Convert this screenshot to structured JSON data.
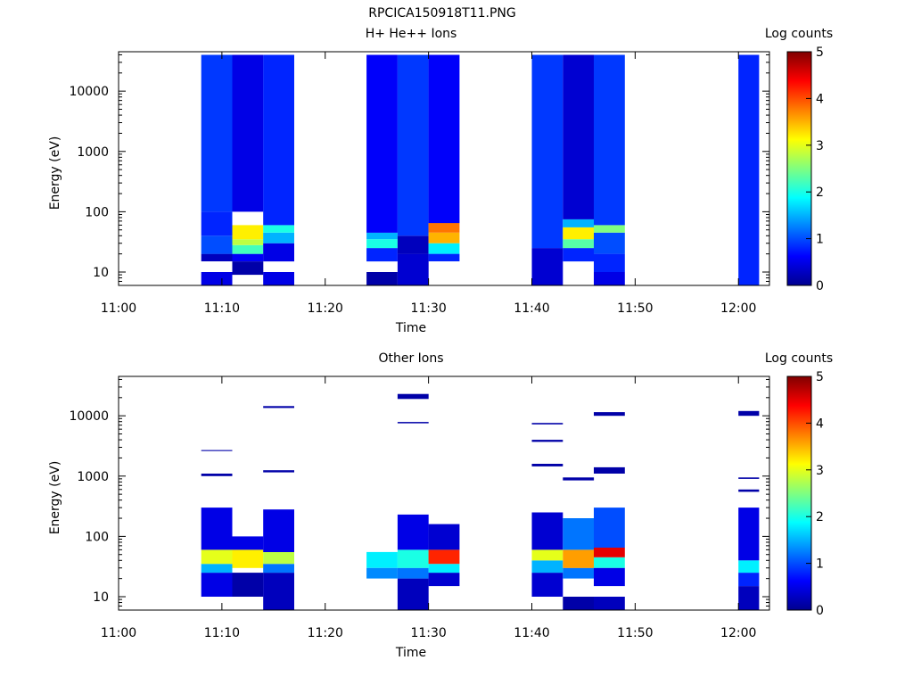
{
  "figure": {
    "title": "RPCICA150918T11.PNG"
  },
  "colorbar": {
    "label": "Log counts",
    "ticks": [
      "0",
      "1",
      "2",
      "3",
      "4",
      "5"
    ],
    "range": [
      0,
      5
    ]
  },
  "chart_data": [
    {
      "type": "heatmap",
      "title": "H+ He++ Ions",
      "xlabel": "Time",
      "ylabel": "Energy (eV)",
      "x_ticks": [
        "11:00",
        "11:10",
        "11:20",
        "11:30",
        "11:40",
        "11:50",
        "12:00"
      ],
      "y_ticks": [
        "10",
        "100",
        "1000",
        "10000"
      ],
      "y_scale": "log",
      "xlim": [
        "11:00",
        "12:03"
      ],
      "ylim": [
        6,
        45000
      ],
      "colorbar_range": [
        0,
        5
      ],
      "time_columns": [
        {
          "start": "11:08",
          "end": "11:11",
          "bands": [
            {
              "e_lo": 6,
              "e_hi": 10,
              "log_counts": 0.5
            },
            {
              "e_lo": 15,
              "e_hi": 20,
              "log_counts": 0.3
            },
            {
              "e_lo": 20,
              "e_hi": 40,
              "log_counts": 1.0
            },
            {
              "e_lo": 40,
              "e_hi": 100,
              "log_counts": 0.8
            },
            {
              "e_lo": 100,
              "e_hi": 40000,
              "log_counts": 0.9
            }
          ]
        },
        {
          "start": "11:11",
          "end": "11:14",
          "bands": [
            {
              "e_lo": 9,
              "e_hi": 15,
              "log_counts": 0.2
            },
            {
              "e_lo": 15,
              "e_hi": 20,
              "log_counts": 0.6
            },
            {
              "e_lo": 20,
              "e_hi": 28,
              "log_counts": 2.2
            },
            {
              "e_lo": 28,
              "e_hi": 35,
              "log_counts": 2.8
            },
            {
              "e_lo": 35,
              "e_hi": 60,
              "log_counts": 3.2
            },
            {
              "e_lo": 100,
              "e_hi": 40000,
              "log_counts": 0.5
            }
          ]
        },
        {
          "start": "11:14",
          "end": "11:17",
          "bands": [
            {
              "e_lo": 6,
              "e_hi": 10,
              "log_counts": 0.5
            },
            {
              "e_lo": 15,
              "e_hi": 30,
              "log_counts": 0.5
            },
            {
              "e_lo": 30,
              "e_hi": 45,
              "log_counts": 1.5
            },
            {
              "e_lo": 45,
              "e_hi": 60,
              "log_counts": 2.0
            },
            {
              "e_lo": 60,
              "e_hi": 40000,
              "log_counts": 0.8
            }
          ]
        },
        {
          "start": "11:24",
          "end": "11:27",
          "bands": [
            {
              "e_lo": 6,
              "e_hi": 10,
              "log_counts": 0.2
            },
            {
              "e_lo": 15,
              "e_hi": 25,
              "log_counts": 0.8
            },
            {
              "e_lo": 25,
              "e_hi": 35,
              "log_counts": 2.0
            },
            {
              "e_lo": 35,
              "e_hi": 45,
              "log_counts": 1.5
            },
            {
              "e_lo": 45,
              "e_hi": 40000,
              "log_counts": 0.6
            }
          ]
        },
        {
          "start": "11:27",
          "end": "11:30",
          "bands": [
            {
              "e_lo": 6,
              "e_hi": 20,
              "log_counts": 0.4
            },
            {
              "e_lo": 20,
              "e_hi": 40,
              "log_counts": 0.3
            },
            {
              "e_lo": 40,
              "e_hi": 40000,
              "log_counts": 0.9
            }
          ]
        },
        {
          "start": "11:30",
          "end": "11:33",
          "bands": [
            {
              "e_lo": 15,
              "e_hi": 20,
              "log_counts": 0.8
            },
            {
              "e_lo": 20,
              "e_hi": 30,
              "log_counts": 1.8
            },
            {
              "e_lo": 30,
              "e_hi": 45,
              "log_counts": 3.5
            },
            {
              "e_lo": 45,
              "e_hi": 65,
              "log_counts": 3.8
            },
            {
              "e_lo": 65,
              "e_hi": 40000,
              "log_counts": 0.6
            }
          ]
        },
        {
          "start": "11:40",
          "end": "11:43",
          "bands": [
            {
              "e_lo": 6,
              "e_hi": 25,
              "log_counts": 0.4
            },
            {
              "e_lo": 25,
              "e_hi": 40000,
              "log_counts": 0.9
            }
          ]
        },
        {
          "start": "11:43",
          "end": "11:46",
          "bands": [
            {
              "e_lo": 15,
              "e_hi": 25,
              "log_counts": 0.8
            },
            {
              "e_lo": 25,
              "e_hi": 35,
              "log_counts": 2.3
            },
            {
              "e_lo": 35,
              "e_hi": 55,
              "log_counts": 3.2
            },
            {
              "e_lo": 55,
              "e_hi": 75,
              "log_counts": 1.5
            },
            {
              "e_lo": 75,
              "e_hi": 40000,
              "log_counts": 0.4
            }
          ]
        },
        {
          "start": "11:46",
          "end": "11:49",
          "bands": [
            {
              "e_lo": 6,
              "e_hi": 10,
              "log_counts": 0.5
            },
            {
              "e_lo": 10,
              "e_hi": 20,
              "log_counts": 0.8
            },
            {
              "e_lo": 20,
              "e_hi": 45,
              "log_counts": 1.0
            },
            {
              "e_lo": 45,
              "e_hi": 60,
              "log_counts": 2.5
            },
            {
              "e_lo": 60,
              "e_hi": 40000,
              "log_counts": 0.9
            }
          ]
        },
        {
          "start": "12:00",
          "end": "12:02",
          "bands": [
            {
              "e_lo": 6,
              "e_hi": 40000,
              "log_counts": 0.8
            }
          ]
        }
      ]
    },
    {
      "type": "heatmap",
      "title": "Other Ions",
      "xlabel": "Time",
      "ylabel": "Energy (eV)",
      "x_ticks": [
        "11:00",
        "11:10",
        "11:20",
        "11:30",
        "11:40",
        "11:50",
        "12:00"
      ],
      "y_ticks": [
        "10",
        "100",
        "1000",
        "10000"
      ],
      "y_scale": "log",
      "xlim": [
        "11:00",
        "12:03"
      ],
      "ylim": [
        6,
        45000
      ],
      "colorbar_range": [
        0,
        5
      ],
      "time_columns": [
        {
          "start": "11:08",
          "end": "11:11",
          "bands": [
            {
              "e_lo": 10,
              "e_hi": 25,
              "log_counts": 0.5
            },
            {
              "e_lo": 25,
              "e_hi": 35,
              "log_counts": 1.5
            },
            {
              "e_lo": 35,
              "e_hi": 60,
              "log_counts": 3.0
            },
            {
              "e_lo": 60,
              "e_hi": 300,
              "log_counts": 0.5
            },
            {
              "e_lo": 1000,
              "e_hi": 1100,
              "log_counts": 0.2
            },
            {
              "e_lo": 2600,
              "e_hi": 2700,
              "log_counts": 0.2
            }
          ]
        },
        {
          "start": "11:11",
          "end": "11:14",
          "bands": [
            {
              "e_lo": 10,
              "e_hi": 25,
              "log_counts": 0.2
            },
            {
              "e_lo": 30,
              "e_hi": 60,
              "log_counts": 3.2
            },
            {
              "e_lo": 60,
              "e_hi": 100,
              "log_counts": 0.5
            }
          ]
        },
        {
          "start": "11:14",
          "end": "11:17",
          "bands": [
            {
              "e_lo": 6,
              "e_hi": 25,
              "log_counts": 0.3
            },
            {
              "e_lo": 25,
              "e_hi": 35,
              "log_counts": 1.2
            },
            {
              "e_lo": 35,
              "e_hi": 55,
              "log_counts": 2.8
            },
            {
              "e_lo": 55,
              "e_hi": 280,
              "log_counts": 0.5
            },
            {
              "e_lo": 1150,
              "e_hi": 1250,
              "log_counts": 0.2
            },
            {
              "e_lo": 13500,
              "e_hi": 14500,
              "log_counts": 0.2
            }
          ]
        },
        {
          "start": "11:24",
          "end": "11:27",
          "bands": [
            {
              "e_lo": 20,
              "e_hi": 30,
              "log_counts": 1.3
            },
            {
              "e_lo": 30,
              "e_hi": 55,
              "log_counts": 1.8
            }
          ]
        },
        {
          "start": "11:27",
          "end": "11:30",
          "bands": [
            {
              "e_lo": 6,
              "e_hi": 20,
              "log_counts": 0.3
            },
            {
              "e_lo": 20,
              "e_hi": 30,
              "log_counts": 1.2
            },
            {
              "e_lo": 30,
              "e_hi": 60,
              "log_counts": 2.0
            },
            {
              "e_lo": 60,
              "e_hi": 230,
              "log_counts": 0.5
            },
            {
              "e_lo": 7500,
              "e_hi": 7900,
              "log_counts": 0.2
            },
            {
              "e_lo": 19000,
              "e_hi": 23000,
              "log_counts": 0.2
            }
          ]
        },
        {
          "start": "11:30",
          "end": "11:33",
          "bands": [
            {
              "e_lo": 15,
              "e_hi": 25,
              "log_counts": 0.4
            },
            {
              "e_lo": 25,
              "e_hi": 35,
              "log_counts": 1.8
            },
            {
              "e_lo": 35,
              "e_hi": 60,
              "log_counts": 4.2
            },
            {
              "e_lo": 60,
              "e_hi": 160,
              "log_counts": 0.4
            }
          ]
        },
        {
          "start": "11:40",
          "end": "11:43",
          "bands": [
            {
              "e_lo": 10,
              "e_hi": 25,
              "log_counts": 0.4
            },
            {
              "e_lo": 25,
              "e_hi": 40,
              "log_counts": 1.5
            },
            {
              "e_lo": 40,
              "e_hi": 60,
              "log_counts": 3.0
            },
            {
              "e_lo": 60,
              "e_hi": 250,
              "log_counts": 0.4
            },
            {
              "e_lo": 1450,
              "e_hi": 1600,
              "log_counts": 0.2
            },
            {
              "e_lo": 3700,
              "e_hi": 4000,
              "log_counts": 0.2
            },
            {
              "e_lo": 7200,
              "e_hi": 7600,
              "log_counts": 0.2
            }
          ]
        },
        {
          "start": "11:43",
          "end": "11:46",
          "bands": [
            {
              "e_lo": 6,
              "e_hi": 10,
              "log_counts": 0.2
            },
            {
              "e_lo": 20,
              "e_hi": 30,
              "log_counts": 1.2
            },
            {
              "e_lo": 30,
              "e_hi": 60,
              "log_counts": 3.6
            },
            {
              "e_lo": 60,
              "e_hi": 200,
              "log_counts": 1.2
            },
            {
              "e_lo": 850,
              "e_hi": 950,
              "log_counts": 0.2
            }
          ]
        },
        {
          "start": "11:46",
          "end": "11:49",
          "bands": [
            {
              "e_lo": 6,
              "e_hi": 10,
              "log_counts": 0.3
            },
            {
              "e_lo": 15,
              "e_hi": 30,
              "log_counts": 0.5
            },
            {
              "e_lo": 30,
              "e_hi": 45,
              "log_counts": 2.0
            },
            {
              "e_lo": 45,
              "e_hi": 65,
              "log_counts": 4.5
            },
            {
              "e_lo": 65,
              "e_hi": 300,
              "log_counts": 1.0
            },
            {
              "e_lo": 1100,
              "e_hi": 1400,
              "log_counts": 0.2
            },
            {
              "e_lo": 10000,
              "e_hi": 11500,
              "log_counts": 0.2
            }
          ]
        },
        {
          "start": "12:00",
          "end": "12:02",
          "bands": [
            {
              "e_lo": 6,
              "e_hi": 15,
              "log_counts": 0.3
            },
            {
              "e_lo": 15,
              "e_hi": 25,
              "log_counts": 0.8
            },
            {
              "e_lo": 25,
              "e_hi": 40,
              "log_counts": 1.8
            },
            {
              "e_lo": 40,
              "e_hi": 300,
              "log_counts": 0.5
            },
            {
              "e_lo": 550,
              "e_hi": 600,
              "log_counts": 0.2
            },
            {
              "e_lo": 900,
              "e_hi": 950,
              "log_counts": 0.2
            },
            {
              "e_lo": 10000,
              "e_hi": 12000,
              "log_counts": 0.2
            }
          ]
        }
      ]
    }
  ]
}
